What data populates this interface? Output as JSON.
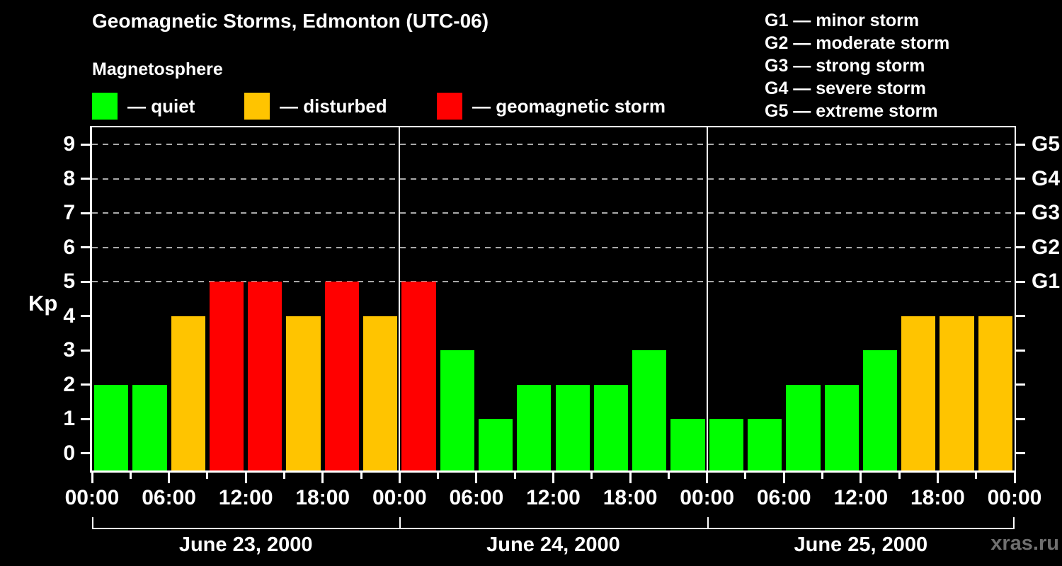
{
  "header": {
    "title": "Geomagnetic Storms, Edmonton (UTC-06)",
    "subtitle": "Magnetosphere"
  },
  "legend": {
    "items": [
      {
        "label": "— quiet",
        "color": "#00ff00"
      },
      {
        "label": "— disturbed",
        "color": "#ffc400"
      },
      {
        "label": "— geomagnetic storm",
        "color": "#ff0000"
      }
    ]
  },
  "g_legend": [
    "G1 — minor storm",
    "G2 — moderate storm",
    "G3 — strong storm",
    "G4 — severe storm",
    "G5 — extreme storm"
  ],
  "watermark": "xras.ru",
  "chart_data": {
    "type": "bar",
    "title": "Geomagnetic Storms, Edmonton (UTC-06)",
    "subtitle": "Magnetosphere",
    "ylabel": "Kp",
    "ylim": [
      -0.5,
      9.5
    ],
    "y_ticks": [
      0,
      1,
      2,
      3,
      4,
      5,
      6,
      7,
      8,
      9
    ],
    "grid_kp_values": [
      5,
      6,
      7,
      8,
      9
    ],
    "grid_on": true,
    "g_scale": [
      {
        "kp": 5,
        "label": "G1"
      },
      {
        "kp": 6,
        "label": "G2"
      },
      {
        "kp": 7,
        "label": "G3"
      },
      {
        "kp": 8,
        "label": "G4"
      },
      {
        "kp": 9,
        "label": "G5"
      }
    ],
    "x_tick_labels": [
      "00:00",
      "06:00",
      "12:00",
      "18:00",
      "00:00",
      "06:00",
      "12:00",
      "18:00",
      "00:00",
      "06:00",
      "12:00",
      "18:00",
      "00:00"
    ],
    "hours_per_bar": 3,
    "days": [
      {
        "date": "June 23, 2000",
        "values": [
          2,
          2,
          4,
          5,
          5,
          4,
          5,
          4
        ]
      },
      {
        "date": "June 24, 2000",
        "values": [
          5,
          3,
          1,
          2,
          2,
          2,
          3,
          1
        ]
      },
      {
        "date": "June 25, 2000",
        "values": [
          1,
          1,
          2,
          2,
          3,
          4,
          4,
          4
        ]
      }
    ],
    "colors": {
      "quiet": "#00ff00",
      "disturbed": "#ffc400",
      "storm": "#ff0000"
    },
    "color_rule": {
      "quiet_max_kp": 3,
      "disturbed_kp": 4,
      "storm_min_kp": 5
    }
  }
}
